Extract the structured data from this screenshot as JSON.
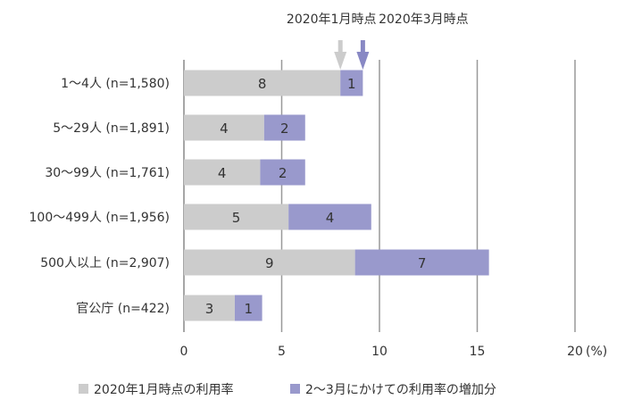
{
  "chart_data": {
    "type": "bar",
    "orientation": "horizontal",
    "stacked": true,
    "categories": [
      "1～4人 (n=1,580)",
      "5～29人 (n=1,891)",
      "30～99人 (n=1,761)",
      "100～499人 (n=1,956)",
      "500人以上 (n=2,907)",
      "官公庁 (n=422)"
    ],
    "series": [
      {
        "name": "2020年1月時点の利用率",
        "color": "#cccccc",
        "values": [
          8.0,
          4.1,
          3.9,
          5.35,
          8.75,
          2.6
        ],
        "labels": [
          "8",
          "4",
          "4",
          "5",
          "9",
          "3"
        ]
      },
      {
        "name": "2～3月にかけての利用率の増加分",
        "color": "#9999cc",
        "values": [
          1.15,
          2.1,
          2.3,
          4.23,
          6.85,
          1.4
        ],
        "labels": [
          "1",
          "2",
          "2",
          "4",
          "7",
          "1"
        ]
      }
    ],
    "xlim": [
      0,
      20
    ],
    "xticks": [
      "0",
      "5",
      "10",
      "15",
      "20"
    ],
    "xunit": "(%)",
    "grid": true,
    "legend": "bottom",
    "annotations": [
      {
        "text": "2020年1月時点",
        "at_value": 8.0,
        "color": "#cccccc"
      },
      {
        "text": "2020年3月時点",
        "at_value": 9.15,
        "color": "#8888c4"
      }
    ]
  }
}
